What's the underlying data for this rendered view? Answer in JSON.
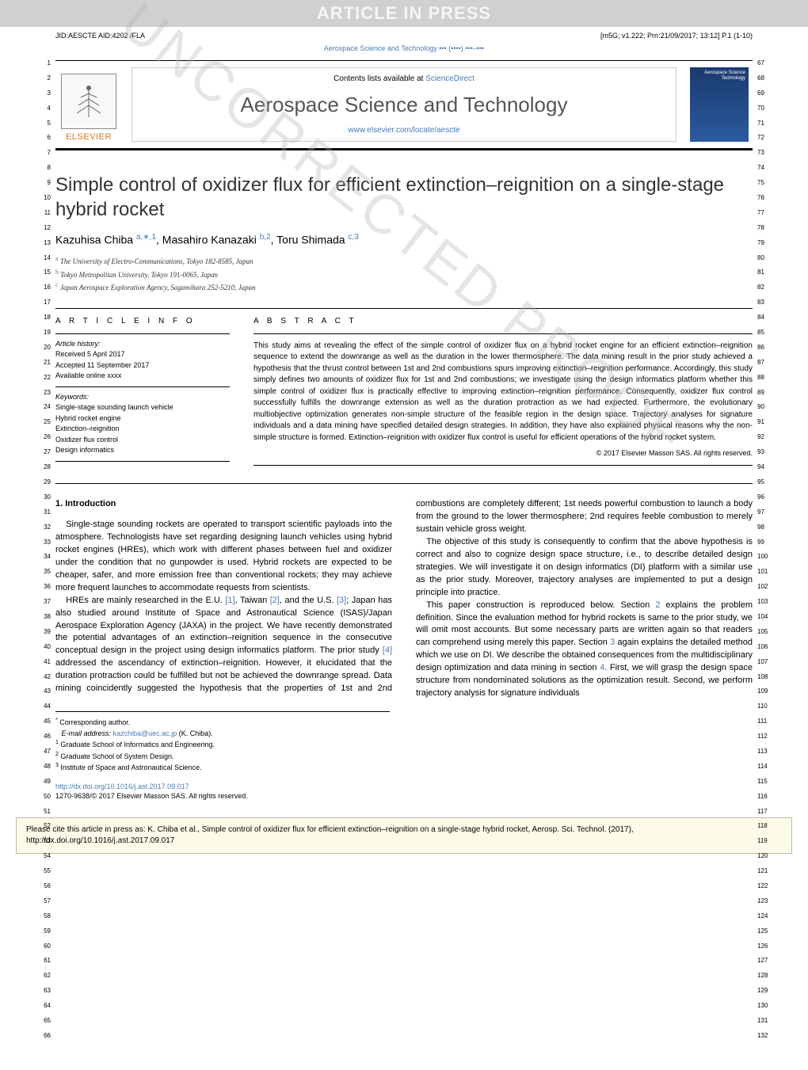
{
  "proof_banner": "ARTICLE IN PRESS",
  "header_meta": {
    "left": "JID:AESCTE   AID:4202 /FLA",
    "right": "[m5G; v1.222; Prn:21/09/2017; 13:12] P.1 (1-10)"
  },
  "journal_ref": "Aerospace Science and Technology ••• (••••) •••–•••",
  "masthead": {
    "contents_text": "Contents lists available at ",
    "contents_link": "ScienceDirect",
    "journal_name": "Aerospace Science and Technology",
    "journal_url": "www.elsevier.com/locate/aescte",
    "publisher_label": "ELSEVIER",
    "cover_text": "Aerospace Science Technology"
  },
  "title": "Simple control of oxidizer flux for efficient extinction–reignition on a single-stage hybrid rocket",
  "authors_html": "Kazuhisa Chiba <span class='aff-sup'>a,∗,1</span>, Masahiro Kanazaki <span class='aff-sup'>b,2</span>, Toru Shimada <span class='aff-sup'>c,3</span>",
  "affiliations": [
    {
      "label": "a",
      "text": "The University of Electro-Communications, Tokyo 182-8585, Japan"
    },
    {
      "label": "b",
      "text": "Tokyo Metropolitan University, Tokyo 191-0065, Japan"
    },
    {
      "label": "c",
      "text": "Japan Aerospace Exploration Agency, Sagamihara 252-5210, Japan"
    }
  ],
  "info": {
    "heading": "A R T I C L E   I N F O",
    "history_label": "Article history:",
    "history": [
      "Received 5 April 2017",
      "Accepted 11 September 2017",
      "Available online xxxx"
    ],
    "keywords_label": "Keywords:",
    "keywords": [
      "Single-stage sounding launch vehicle",
      "Hybrid rocket engine",
      "Extinction–reignition",
      "Oxidizer flux control",
      "Design informatics"
    ]
  },
  "abstract": {
    "heading": "A B S T R A C T",
    "text": "This study aims at revealing the effect of the simple control of oxidizer flux on a hybrid rocket engine for an efficient extinction–reignition sequence to extend the downrange as well as the duration in the lower thermosphere. The data mining result in the prior study achieved a hypothesis that the thrust control between 1st and 2nd combustions spurs improving extinction–reignition performance. Accordingly, this study simply defines two amounts of oxidizer flux for 1st and 2nd combustions; we investigate using the design informatics platform whether this simple control of oxidizer flux is practically effective to improving extinction–reignition performance. Consequently, oxidizer flux control successfully fulfills the downrange extension as well as the duration protraction as we had expected. Furthermore, the evolutionary multiobjective optimization generates non-simple structure of the feasible region in the design space. Trajectory analyses for signature individuals and a data mining have specified detailed design strategies. In addition, they have also explained physical reasons why the non-simple structure is formed. Extinction–reignition with oxidizer flux control is useful for efficient operations of the hybrid rocket system.",
    "copyright": "© 2017 Elsevier Masson SAS. All rights reserved."
  },
  "body": {
    "sec1_heading": "1. Introduction",
    "p1": "Single-stage sounding rockets are operated to transport scientific payloads into the atmosphere. Technologists have set regarding designing launch vehicles using hybrid rocket engines (HREs), which work with different phases between fuel and oxidizer under the condition that no gunpowder is used. Hybrid rockets are expected to be cheaper, safer, and more emission free than conventional rockets; they may achieve more frequent launches to accommodate requests from scientists.",
    "p2_a": "HREs are mainly researched in the E.U. ",
    "p2_c1": "[1]",
    "p2_b": ", Taiwan ",
    "p2_c2": "[2]",
    "p2_c": ", and the U.S. ",
    "p2_c3": "[3]",
    "p2_d": "; Japan has also studied around Institute of Space and Astronautical Science (ISAS)/Japan Aerospace Exploration Agency (JAXA) in the project. We have recently demonstrated the potential advantages of an extinction–reignition sequence in the consecutive conceptual design in the project using design informatics platform. The prior study ",
    "p2_c4": "[4]",
    "p2_e": " addressed the ascendancy of extinction–",
    "p3": "reignition. However, it elucidated that the duration protraction could be fulfilled but not be achieved the downrange spread. Data mining coincidently suggested the hypothesis that the properties of 1st and 2nd combustions are completely different; 1st needs powerful combustion to launch a body from the ground to the lower thermosphere; 2nd requires feeble combustion to merely sustain vehicle gross weight.",
    "p4": "The objective of this study is consequently to confirm that the above hypothesis is correct and also to cognize design space structure, i.e., to describe detailed design strategies. We will investigate it on design informatics (DI) platform with a similar use as the prior study. Moreover, trajectory analyses are implemented to put a design principle into practice.",
    "p5_a": "This paper construction is reproduced below. Section ",
    "p5_c1": "2",
    "p5_b": " explains the problem definition. Since the evaluation method for hybrid rockets is same to the prior study, we will omit most accounts. But some necessary parts are written again so that readers can comprehend using merely this paper. Section ",
    "p5_c2": "3",
    "p5_c": " again explains the detailed method which we use on DI. We describe the obtained consequences from the multidisciplinary design optimization and data mining in section ",
    "p5_c3": "4",
    "p5_d": ". First, we will grasp the design space structure from nondominated solutions as the optimization result. Second, we perform trajectory analysis for signature individuals"
  },
  "footnotes": {
    "corr_label": "*",
    "corr_text": "Corresponding author.",
    "email_label": "E-mail address:",
    "email": "kazchiba@uec.ac.jp",
    "email_tail": "(K. Chiba).",
    "notes": [
      {
        "n": "1",
        "text": "Graduate School of Informatics and Engineering."
      },
      {
        "n": "2",
        "text": "Graduate School of System Design."
      },
      {
        "n": "3",
        "text": "Institute of Space and Astronautical Science."
      }
    ]
  },
  "doi": {
    "url": "http://dx.doi.org/10.1016/j.ast.2017.09.017",
    "issn_line": "1270-9638/© 2017 Elsevier Masson SAS. All rights reserved."
  },
  "cite_box": "Please cite this article in press as: K. Chiba et al., Simple control of oxidizer flux for efficient extinction–reignition on a single-stage hybrid rocket, Aerosp. Sci. Technol. (2017), http://dx.doi.org/10.1016/j.ast.2017.09.017",
  "watermark": "UNCORRECTED PROOF",
  "colors": {
    "link": "#4a7bb5",
    "orange": "#e67817",
    "banner_bg": "#d0d0d0",
    "citebox_bg": "#fcfbe8"
  },
  "line_numbers": {
    "left_start": 1,
    "left_end": 66,
    "right_start": 67,
    "right_end": 132
  }
}
